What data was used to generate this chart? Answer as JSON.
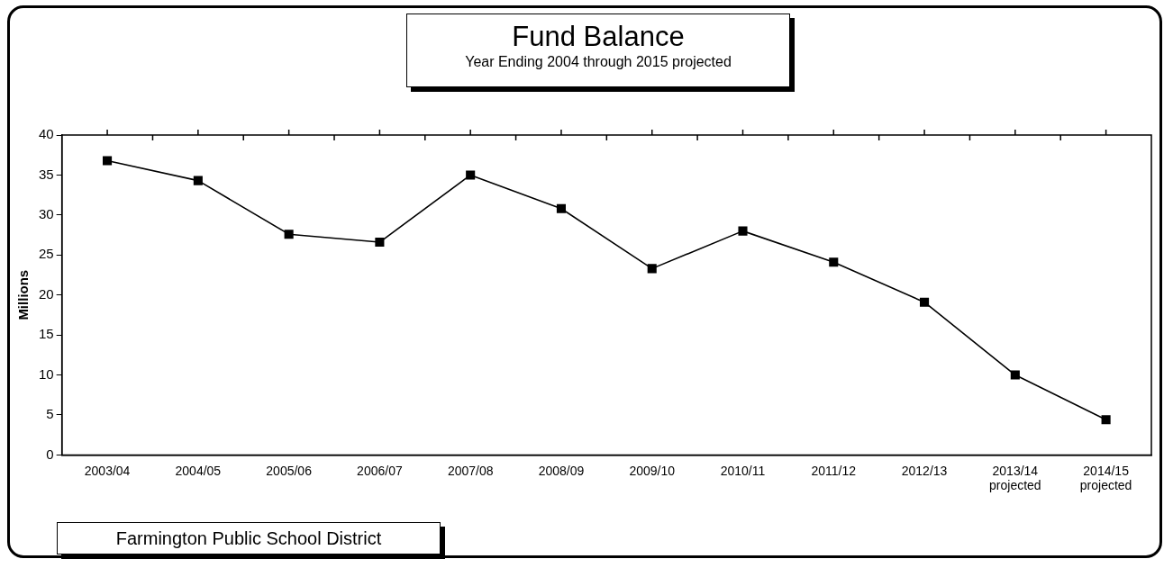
{
  "chart_data": {
    "type": "line",
    "title": "Fund Balance",
    "subtitle": "Year Ending 2004 through 2015 projected",
    "ylabel": "Millions",
    "categories": [
      "2003/04",
      "2004/05",
      "2005/06",
      "2006/07",
      "2007/08",
      "2008/09",
      "2009/10",
      "2010/11",
      "2011/12",
      "2012/13",
      "2013/14\nprojected",
      "2014/15\nprojected"
    ],
    "series": [
      {
        "color": "#000000",
        "values": [
          36.8,
          34.3,
          27.6,
          26.6,
          35.0,
          30.8,
          23.3,
          28.0,
          24.1,
          19.1,
          10.0,
          4.4
        ]
      }
    ],
    "ylim": [
      0,
      40
    ],
    "yticks": [
      0,
      5,
      10,
      15,
      20,
      25,
      30,
      35,
      40
    ],
    "marker": "square",
    "line_style": "solid",
    "grid": false,
    "annotations": [
      "Farmington Public School District"
    ]
  }
}
